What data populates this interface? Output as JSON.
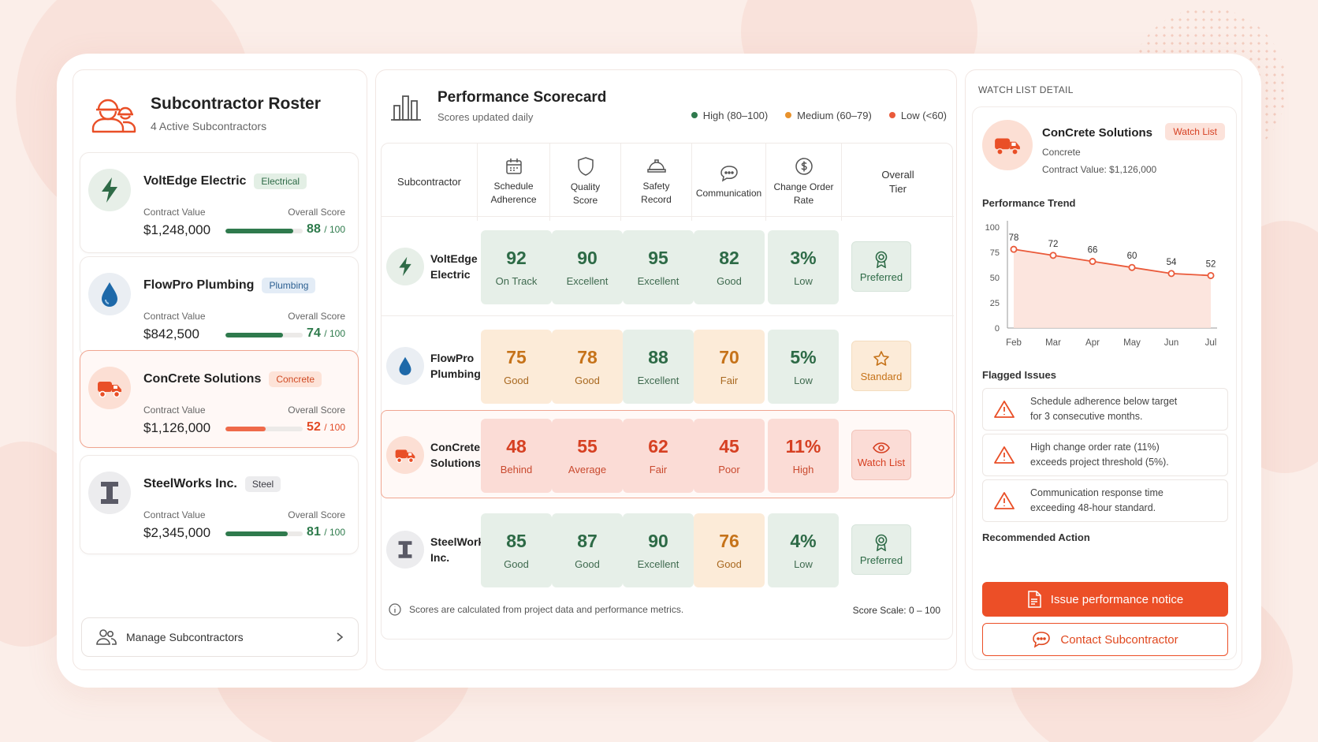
{
  "colors": {
    "accent": "#ec4f27",
    "high": "#2d6a46",
    "medium": "#e8922c",
    "low": "#ea5a3a"
  },
  "roster": {
    "title": "Subcontractor Roster",
    "subtitle": "4 Active Subcontractors",
    "contract_label": "Contract Value",
    "score_label": "Overall Score",
    "score_suffix": "/ 100",
    "items": [
      {
        "name": "VoltEdge Electric",
        "tag": "Electrical",
        "value": "$1,248,000",
        "score": "88",
        "progress": 0.88
      },
      {
        "name": "FlowPro Plumbing",
        "tag": "Plumbing",
        "value": "$842,500",
        "score": "74",
        "progress": 0.74
      },
      {
        "name": "ConCrete Solutions",
        "tag": "Concrete",
        "value": "$1,126,000",
        "score": "52",
        "progress": 0.52
      },
      {
        "name": "SteelWorks Inc.",
        "tag": "Steel",
        "value": "$2,345,000",
        "score": "81",
        "progress": 0.81
      }
    ],
    "manage_label": "Manage Subcontractors"
  },
  "scorecard": {
    "title": "Performance Scorecard",
    "subtitle": "Scores updated daily",
    "legend": [
      "High (80–100)",
      "Medium (60–79)",
      "Low (<60)"
    ],
    "headers": {
      "sub": "Subcontractor",
      "schedule": [
        "Schedule",
        "Adherence"
      ],
      "quality": [
        "Quality",
        "Score"
      ],
      "safety": [
        "Safety",
        "Record"
      ],
      "communication": [
        "Communication"
      ],
      "change": [
        "Change Order",
        "Rate"
      ],
      "tier": [
        "Overall",
        "Tier"
      ]
    },
    "rows": [
      {
        "name": [
          "VoltEdge",
          "Electric"
        ],
        "cells": [
          [
            "92",
            "On Track"
          ],
          [
            "90",
            "Excellent"
          ],
          [
            "95",
            "Excellent"
          ],
          [
            "82",
            "Good"
          ],
          [
            "3%",
            "Low"
          ]
        ],
        "tier": "Preferred"
      },
      {
        "name": [
          "FlowPro",
          "Plumbing"
        ],
        "cells": [
          [
            "75",
            "Good"
          ],
          [
            "78",
            "Good"
          ],
          [
            "88",
            "Excellent"
          ],
          [
            "70",
            "Fair"
          ],
          [
            "5%",
            "Low"
          ]
        ],
        "tier": "Standard"
      },
      {
        "name": [
          "ConCrete",
          "Solutions"
        ],
        "cells": [
          [
            "48",
            "Behind"
          ],
          [
            "55",
            "Average"
          ],
          [
            "62",
            "Fair"
          ],
          [
            "45",
            "Poor"
          ],
          [
            "11%",
            "High"
          ]
        ],
        "tier": "Watch List"
      },
      {
        "name": [
          "SteelWorks",
          "Inc."
        ],
        "cells": [
          [
            "85",
            "Good"
          ],
          [
            "87",
            "Good"
          ],
          [
            "90",
            "Excellent"
          ],
          [
            "76",
            "Good"
          ],
          [
            "4%",
            "Low"
          ]
        ],
        "tier": "Preferred"
      }
    ],
    "footnote": "Scores are calculated from project data and performance metrics.",
    "scale": "Score Scale: 0 – 100"
  },
  "watch": {
    "label": "WATCH LIST DETAIL",
    "name": "ConCrete Solutions",
    "category": "Concrete",
    "contract": "Contract Value: $1,126,000",
    "badge": "Watch List",
    "trend_title": "Performance Trend",
    "flagged_title": "Flagged Issues",
    "issues": [
      [
        "Schedule adherence below target",
        "for 3 consecutive months."
      ],
      [
        "High change order rate (11%)",
        "exceeds project threshold (5%)."
      ],
      [
        "Communication response time",
        "exceeding 48-hour standard."
      ]
    ],
    "action_title": "Recommended Action",
    "primary_btn": "Issue performance notice",
    "secondary_btn": "Contact Subcontractor"
  },
  "chart_data": {
    "type": "area",
    "x": [
      "Feb",
      "Mar",
      "Apr",
      "May",
      "Jun",
      "Jul"
    ],
    "values": [
      78,
      72,
      66,
      60,
      54,
      52
    ],
    "yticks": [
      0,
      25,
      50,
      75,
      100
    ],
    "ylim": [
      0,
      100
    ],
    "grid": false,
    "color": "#ea5a3a"
  }
}
